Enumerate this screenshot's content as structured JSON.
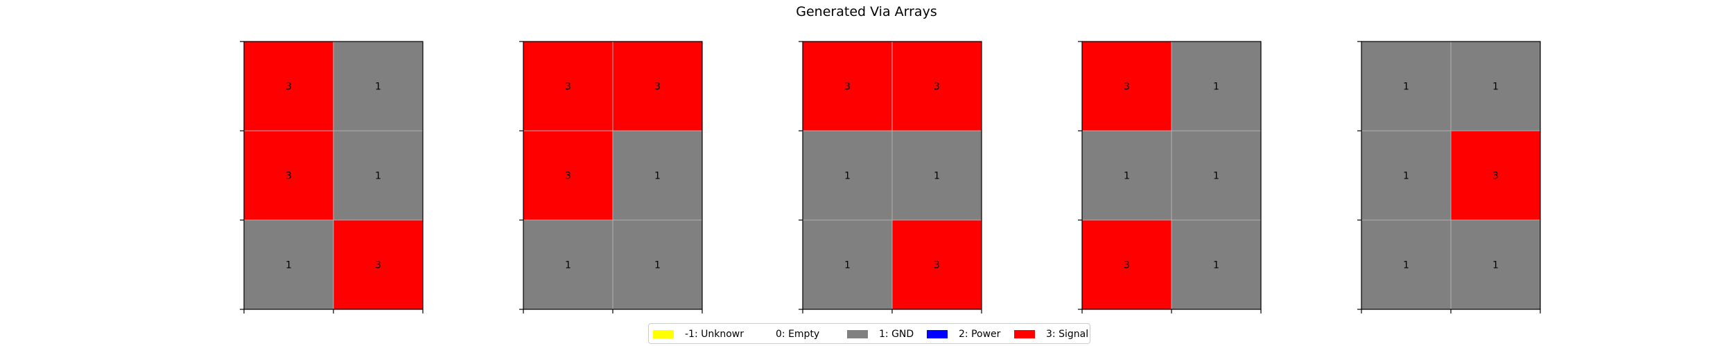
{
  "title": "Generated Via Arrays",
  "chart_data": {
    "type": "heatmap",
    "title": "Generated Via Arrays",
    "grid": true,
    "legend_placement": "bottom-center",
    "color_map": {
      "-1": "#ffff00",
      "0": "#ffffff",
      "1": "#808080",
      "2": "#0000ff",
      "3": "#ff0000"
    },
    "legend": [
      {
        "value": -1,
        "label": "-1: Unknown",
        "color": "#ffff00"
      },
      {
        "value": 0,
        "label": "0: Empty",
        "color": "#ffffff"
      },
      {
        "value": 1,
        "label": "1: GND",
        "color": "#808080"
      },
      {
        "value": 2,
        "label": "2: Power",
        "color": "#0000ff"
      },
      {
        "value": 3,
        "label": "3: Signal",
        "color": "#ff0000"
      }
    ],
    "arrays": [
      [
        [
          3,
          1
        ],
        [
          3,
          1
        ],
        [
          1,
          3
        ]
      ],
      [
        [
          3,
          3
        ],
        [
          3,
          1
        ],
        [
          1,
          1
        ]
      ],
      [
        [
          3,
          3
        ],
        [
          1,
          1
        ],
        [
          1,
          3
        ]
      ],
      [
        [
          3,
          1
        ],
        [
          1,
          1
        ],
        [
          3,
          1
        ]
      ],
      [
        [
          1,
          1
        ],
        [
          1,
          3
        ],
        [
          1,
          1
        ]
      ]
    ]
  }
}
